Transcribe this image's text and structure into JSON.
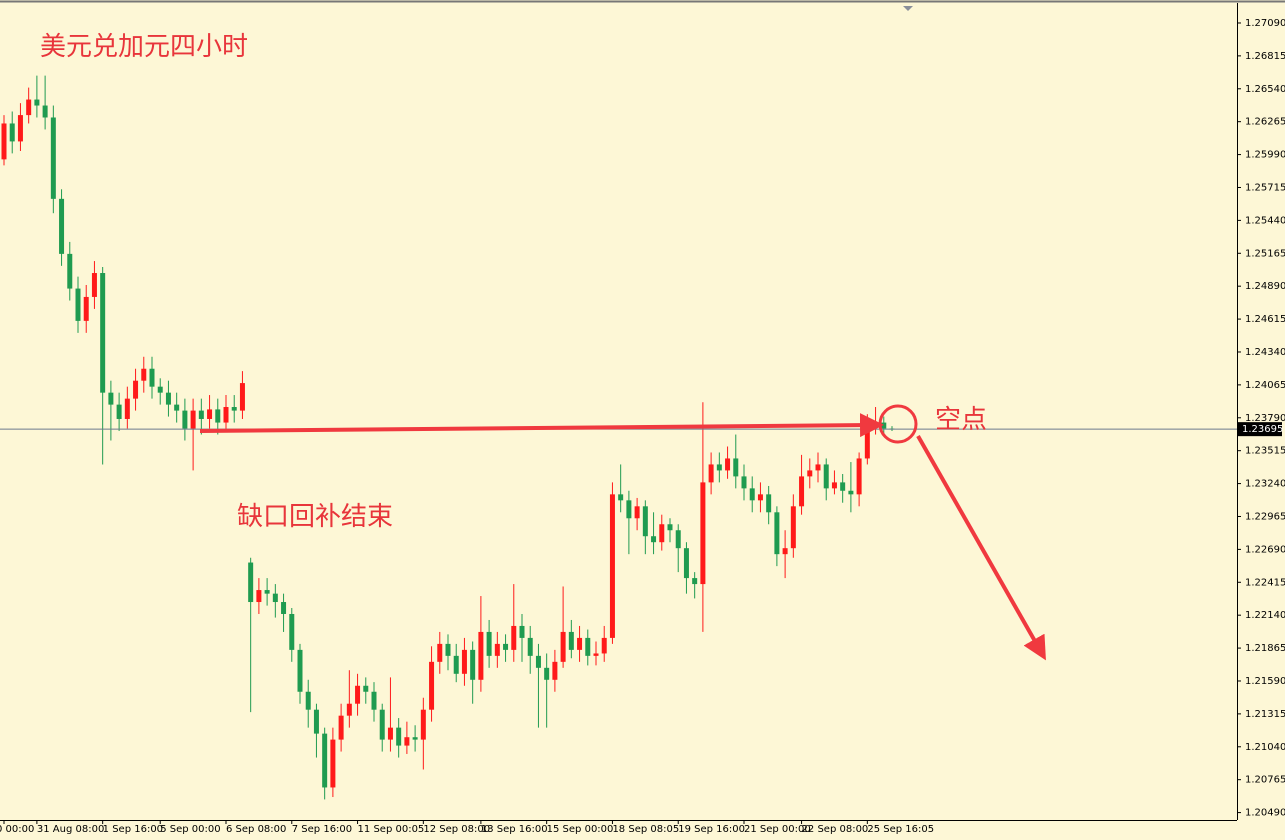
{
  "chart_data": {
    "type": "candlestick",
    "title": "美元兑加元四小时",
    "annotations": [
      "缺口回补结束",
      "空点"
    ],
    "up_color": "#ff1a1a",
    "down_color": "#1f9b50",
    "ylim": [
      1.20428,
      1.27257
    ],
    "yticks": [
      {
        "value": 1.2709,
        "label": "1.27090"
      },
      {
        "value": 1.26815,
        "label": "1.26815"
      },
      {
        "value": 1.2654,
        "label": "1.26540"
      },
      {
        "value": 1.26265,
        "label": "1.26265"
      },
      {
        "value": 1.2599,
        "label": "1.25990"
      },
      {
        "value": 1.25715,
        "label": "1.25715"
      },
      {
        "value": 1.2544,
        "label": "1.25440"
      },
      {
        "value": 1.25165,
        "label": "1.25165"
      },
      {
        "value": 1.2489,
        "label": "1.24890"
      },
      {
        "value": 1.24615,
        "label": "1.24615"
      },
      {
        "value": 1.2434,
        "label": "1.24340"
      },
      {
        "value": 1.24065,
        "label": "1.24065"
      },
      {
        "value": 1.2379,
        "label": "1.23790"
      },
      {
        "value": 1.23515,
        "label": "1.23515"
      },
      {
        "value": 1.2324,
        "label": "1.23240"
      },
      {
        "value": 1.22965,
        "label": "1.22965"
      },
      {
        "value": 1.2269,
        "label": "1.22690"
      },
      {
        "value": 1.22415,
        "label": "1.22415"
      },
      {
        "value": 1.2214,
        "label": "1.22140"
      },
      {
        "value": 1.21865,
        "label": "1.21865"
      },
      {
        "value": 1.2159,
        "label": "1.21590"
      },
      {
        "value": 1.21315,
        "label": "1.21315"
      },
      {
        "value": 1.2104,
        "label": "1.21040"
      },
      {
        "value": 1.20765,
        "label": "1.20765"
      },
      {
        "value": 1.2049,
        "label": "1.20490"
      }
    ],
    "current_price": {
      "value": 1.23695,
      "label": "1.23695"
    },
    "xticks": [
      {
        "value": 0,
        "label": "0 00:00"
      },
      {
        "value": 4,
        "label": "31 Aug 08:00"
      },
      {
        "value": 12,
        "label": "1 Sep 16:00"
      },
      {
        "value": 19,
        "label": "5 Sep 00:00"
      },
      {
        "value": 27,
        "label": "6 Sep 08:00"
      },
      {
        "value": 35,
        "label": "7 Sep 16:00"
      },
      {
        "value": 43,
        "label": "11 Sep 00:05"
      },
      {
        "value": 51,
        "label": "12 Sep 08:00"
      },
      {
        "value": 58,
        "label": "13 Sep 16:00"
      },
      {
        "value": 66,
        "label": "15 Sep 00:00"
      },
      {
        "value": 74,
        "label": "18 Sep 08:05"
      },
      {
        "value": 82,
        "label": "19 Sep 16:00"
      },
      {
        "value": 90,
        "label": "21 Sep 00:00"
      },
      {
        "value": 97,
        "label": "22 Sep 08:00"
      },
      {
        "value": 105,
        "label": "25 Sep 16:05"
      }
    ],
    "open": [
      1.2595,
      1.2625,
      1.261,
      1.2632,
      1.2645,
      1.264,
      1.263,
      1.2562,
      1.2516,
      1.2487,
      1.246,
      1.248,
      1.25,
      1.24,
      1.239,
      1.2378,
      1.2395,
      1.241,
      1.242,
      1.2405,
      1.24,
      1.239,
      1.2385,
      1.237,
      1.2385,
      1.2378,
      1.2386,
      1.2375,
      1.2388,
      1.2385,
      1.2258,
      1.2225,
      1.2235,
      1.2232,
      1.2225,
      1.2215,
      1.2185,
      1.215,
      1.2135,
      1.2115,
      1.207,
      1.211,
      1.213,
      1.214,
      1.2155,
      1.215,
      1.2135,
      1.211,
      1.212,
      1.2105,
      1.2112,
      1.211,
      1.2135,
      1.2175,
      1.219,
      1.218,
      1.2165,
      1.2185,
      1.216,
      1.22,
      1.218,
      1.219,
      1.2185,
      1.2205,
      1.2195,
      1.218,
      1.217,
      1.216,
      1.2175,
      1.22,
      1.2185,
      1.2195,
      1.218,
      1.2182,
      1.2195,
      1.2315,
      1.231,
      1.2295,
      1.2305,
      1.228,
      1.2275,
      1.229,
      1.2285,
      1.227,
      1.2245,
      1.224,
      1.2325,
      1.234,
      1.2335,
      1.2345,
      1.233,
      1.232,
      1.231,
      1.2315,
      1.23,
      1.2265,
      1.227,
      1.2305,
      1.233,
      1.2335,
      1.234,
      1.232,
      1.2325,
      1.2318,
      1.2315,
      1.2345,
      1.2372,
      1.2375,
      1.237
    ],
    "high": [
      1.2632,
      1.2635,
      1.2642,
      1.2655,
      1.2665,
      1.2665,
      1.264,
      1.257,
      1.2526,
      1.2497,
      1.249,
      1.251,
      1.2505,
      1.241,
      1.24,
      1.2405,
      1.242,
      1.243,
      1.243,
      1.2412,
      1.241,
      1.24,
      1.2395,
      1.2395,
      1.2395,
      1.2398,
      1.2395,
      1.2398,
      1.2398,
      1.2418,
      1.2262,
      1.2245,
      1.2245,
      1.224,
      1.2232,
      1.222,
      1.219,
      1.216,
      1.214,
      1.212,
      1.212,
      1.214,
      1.2168,
      1.2165,
      1.2162,
      1.2158,
      1.214,
      1.2162,
      1.2128,
      1.2125,
      1.2122,
      1.2145,
      1.2188,
      1.22,
      1.2198,
      1.219,
      1.2195,
      1.2192,
      1.223,
      1.221,
      1.22,
      1.2198,
      1.224,
      1.2215,
      1.2205,
      1.219,
      1.2182,
      1.2185,
      1.2238,
      1.221,
      1.2205,
      1.2202,
      1.2192,
      1.2205,
      1.2325,
      1.234,
      1.2318,
      1.2312,
      1.231,
      1.23,
      1.2298,
      1.2295,
      1.229,
      1.2275,
      1.225,
      1.2392,
      1.235,
      1.235,
      1.2355,
      1.2365,
      1.234,
      1.233,
      1.2325,
      1.2322,
      1.2305,
      1.2285,
      1.2315,
      1.2348,
      1.2345,
      1.235,
      1.2345,
      1.2335,
      1.2332,
      1.2342,
      1.235,
      1.2382,
      1.2388,
      1.238,
      1.2372
    ],
    "low": [
      1.259,
      1.26,
      1.2602,
      1.2625,
      1.263,
      1.262,
      1.255,
      1.2506,
      1.2477,
      1.245,
      1.245,
      1.247,
      1.234,
      1.236,
      1.2368,
      1.237,
      1.2385,
      1.24,
      1.2395,
      1.239,
      1.238,
      1.2375,
      1.236,
      1.2335,
      1.2365,
      1.237,
      1.2365,
      1.2368,
      1.2375,
      1.2378,
      1.2133,
      1.2215,
      1.2222,
      1.2212,
      1.22,
      1.2175,
      1.214,
      1.212,
      1.2095,
      1.206,
      1.2062,
      1.21,
      1.212,
      1.213,
      1.214,
      1.2125,
      1.21,
      1.21,
      1.2095,
      1.2098,
      1.21,
      1.2085,
      1.2125,
      1.2165,
      1.2168,
      1.2158,
      1.2155,
      1.214,
      1.215,
      1.217,
      1.217,
      1.2175,
      1.2175,
      1.2175,
      1.2165,
      1.212,
      1.212,
      1.215,
      1.217,
      1.2178,
      1.2175,
      1.2172,
      1.2172,
      1.2175,
      1.219,
      1.23,
      1.2265,
      1.2285,
      1.2265,
      1.2265,
      1.2268,
      1.2275,
      1.225,
      1.2232,
      1.2228,
      1.22,
      1.2315,
      1.2325,
      1.2328,
      1.232,
      1.231,
      1.23,
      1.23,
      1.229,
      1.2255,
      1.2245,
      1.2262,
      1.2298,
      1.232,
      1.2325,
      1.231,
      1.2315,
      1.2308,
      1.23,
      1.2305,
      1.234,
      1.2365,
      1.2365,
      1.2368
    ],
    "close": [
      1.2625,
      1.261,
      1.2632,
      1.2645,
      1.264,
      1.263,
      1.2562,
      1.2516,
      1.2487,
      1.246,
      1.248,
      1.25,
      1.24,
      1.239,
      1.2378,
      1.2395,
      1.241,
      1.242,
      1.2405,
      1.24,
      1.239,
      1.2385,
      1.237,
      1.2385,
      1.2378,
      1.2386,
      1.2375,
      1.2388,
      1.2385,
      1.2408,
      1.2225,
      1.2235,
      1.2232,
      1.2225,
      1.2215,
      1.2185,
      1.215,
      1.2135,
      1.2115,
      1.207,
      1.211,
      1.213,
      1.214,
      1.2155,
      1.215,
      1.2135,
      1.211,
      1.212,
      1.2105,
      1.2112,
      1.211,
      1.2135,
      1.2175,
      1.219,
      1.218,
      1.2165,
      1.2185,
      1.216,
      1.22,
      1.218,
      1.219,
      1.2185,
      1.2205,
      1.2195,
      1.218,
      1.217,
      1.216,
      1.2175,
      1.22,
      1.2185,
      1.2195,
      1.218,
      1.2182,
      1.2195,
      1.2315,
      1.231,
      1.2295,
      1.2305,
      1.228,
      1.2275,
      1.229,
      1.2285,
      1.227,
      1.2245,
      1.224,
      1.2325,
      1.234,
      1.2335,
      1.2345,
      1.233,
      1.232,
      1.231,
      1.2315,
      1.23,
      1.2265,
      1.227,
      1.2305,
      1.233,
      1.2335,
      1.234,
      1.232,
      1.2325,
      1.2318,
      1.2315,
      1.2345,
      1.2372,
      1.2375,
      1.237,
      1.23695
    ]
  }
}
